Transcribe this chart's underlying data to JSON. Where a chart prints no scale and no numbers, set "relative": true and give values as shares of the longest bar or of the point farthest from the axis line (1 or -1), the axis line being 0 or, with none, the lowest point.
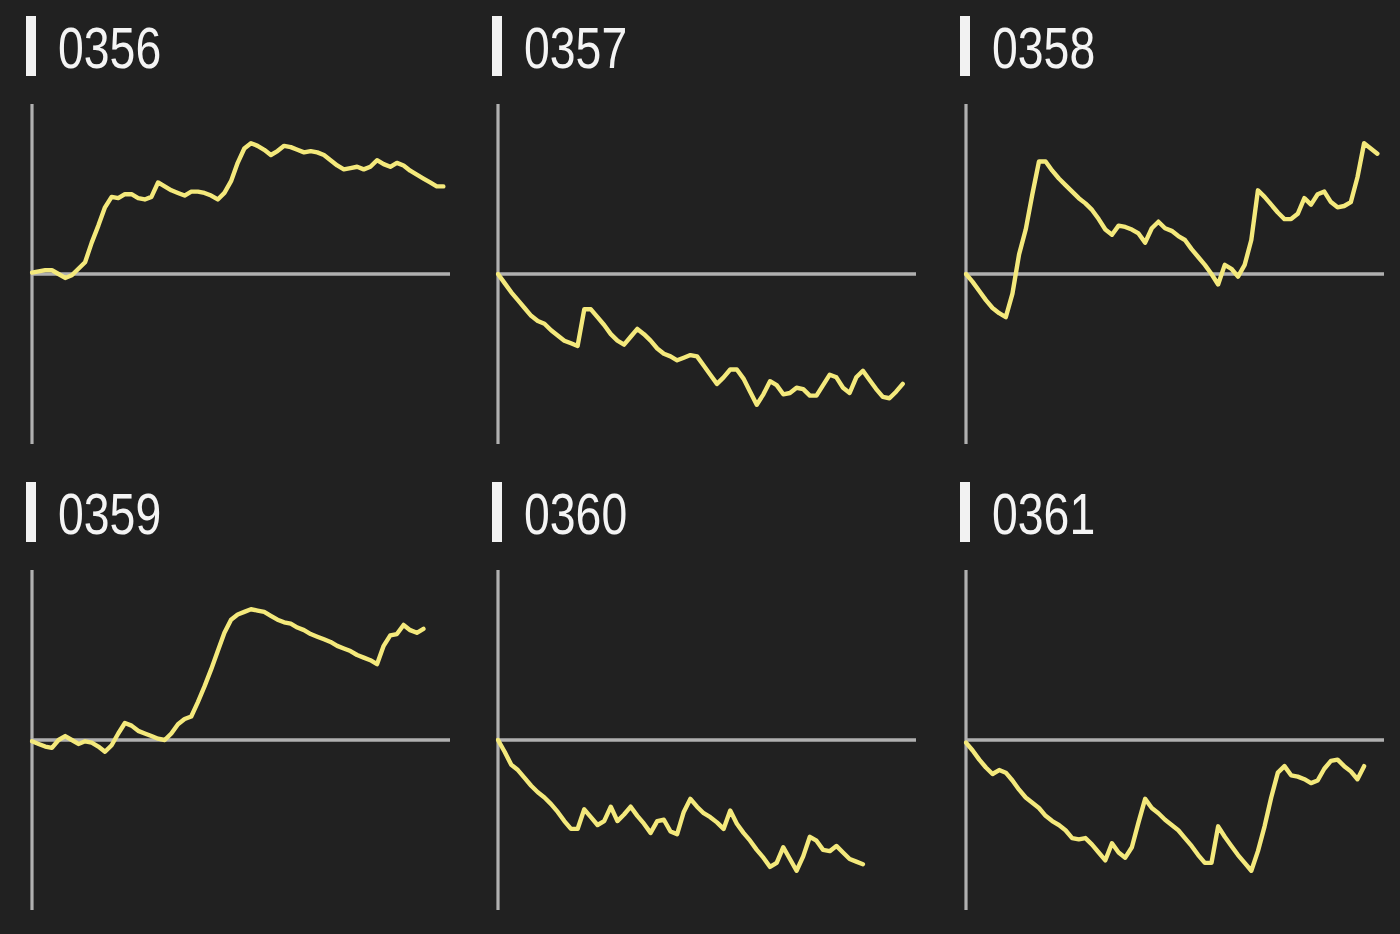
{
  "chart_data": [
    {
      "type": "line",
      "title": "0356",
      "relative": true,
      "tick_labels": false,
      "color": "#f4e97c",
      "categories": [
        null,
        null,
        null,
        null,
        null,
        null,
        null,
        null,
        null,
        null,
        null,
        null,
        null,
        null,
        null,
        null,
        null,
        null,
        null,
        null,
        null,
        null,
        null,
        null,
        null,
        null,
        null,
        null,
        null,
        null,
        null,
        null,
        null,
        null,
        null,
        null,
        null,
        null,
        null,
        null,
        null,
        null,
        null,
        null,
        null,
        null,
        null,
        null,
        null,
        null,
        null,
        null,
        null,
        null,
        null,
        null,
        null,
        null,
        null,
        null,
        null,
        null,
        null,
        null
      ],
      "values": [
        0.01,
        0.02,
        0.03,
        0.03,
        0,
        -0.03,
        -0.01,
        0.04,
        0.09,
        0.24,
        0.37,
        0.51,
        0.59,
        0.58,
        0.61,
        0.61,
        0.58,
        0.57,
        0.59,
        0.7,
        0.67,
        0.64,
        0.62,
        0.6,
        0.63,
        0.63,
        0.62,
        0.6,
        0.57,
        0.62,
        0.71,
        0.85,
        0.96,
        1,
        0.98,
        0.95,
        0.91,
        0.94,
        0.98,
        0.97,
        0.95,
        0.93,
        0.94,
        0.93,
        0.91,
        0.87,
        0.83,
        0.8,
        0.81,
        0.82,
        0.8,
        0.82,
        0.87,
        0.84,
        0.82,
        0.85,
        0.83,
        0.79,
        0.76,
        0.73,
        0.7,
        0.67,
        0.67,
        null
      ]
    },
    {
      "type": "line",
      "title": "0357",
      "relative": true,
      "tick_labels": false,
      "color": "#f4e97c",
      "categories": [
        null,
        null,
        null,
        null,
        null,
        null,
        null,
        null,
        null,
        null,
        null,
        null,
        null,
        null,
        null,
        null,
        null,
        null,
        null,
        null,
        null,
        null,
        null,
        null,
        null,
        null,
        null,
        null,
        null,
        null,
        null,
        null,
        null,
        null,
        null,
        null,
        null,
        null,
        null,
        null,
        null,
        null,
        null,
        null,
        null,
        null,
        null,
        null,
        null,
        null,
        null,
        null,
        null,
        null,
        null,
        null,
        null,
        null,
        null,
        null,
        null,
        null,
        null,
        null
      ],
      "values": [
        0,
        -0.07,
        -0.14,
        -0.2,
        -0.26,
        -0.32,
        -0.36,
        -0.38,
        -0.43,
        -0.47,
        -0.51,
        -0.53,
        -0.55,
        -0.27,
        -0.27,
        -0.33,
        -0.39,
        -0.46,
        -0.51,
        -0.54,
        -0.48,
        -0.42,
        -0.46,
        -0.51,
        -0.57,
        -0.61,
        -0.63,
        -0.66,
        -0.64,
        -0.62,
        -0.63,
        -0.7,
        -0.77,
        -0.84,
        -0.79,
        -0.73,
        -0.73,
        -0.8,
        -0.9,
        -1,
        -0.92,
        -0.82,
        -0.85,
        -0.92,
        -0.91,
        -0.87,
        -0.88,
        -0.93,
        -0.93,
        -0.85,
        -0.77,
        -0.79,
        -0.87,
        -0.91,
        -0.79,
        -0.74,
        -0.81,
        -0.88,
        -0.94,
        -0.95,
        -0.9,
        -0.84,
        null,
        null
      ]
    },
    {
      "type": "line",
      "title": "0358",
      "relative": true,
      "tick_labels": false,
      "color": "#f4e97c",
      "categories": [
        null,
        null,
        null,
        null,
        null,
        null,
        null,
        null,
        null,
        null,
        null,
        null,
        null,
        null,
        null,
        null,
        null,
        null,
        null,
        null,
        null,
        null,
        null,
        null,
        null,
        null,
        null,
        null,
        null,
        null,
        null,
        null,
        null,
        null,
        null,
        null,
        null,
        null,
        null,
        null,
        null,
        null,
        null,
        null,
        null,
        null,
        null,
        null,
        null,
        null,
        null,
        null,
        null,
        null,
        null,
        null,
        null,
        null,
        null,
        null,
        null,
        null,
        null,
        null
      ],
      "values": [
        0,
        -0.06,
        -0.13,
        -0.2,
        -0.26,
        -0.3,
        -0.33,
        -0.15,
        0.15,
        0.34,
        0.61,
        0.86,
        0.86,
        0.79,
        0.73,
        0.68,
        0.63,
        0.58,
        0.54,
        0.49,
        0.42,
        0.34,
        0.3,
        0.37,
        0.36,
        0.34,
        0.31,
        0.24,
        0.35,
        0.4,
        0.35,
        0.33,
        0.29,
        0.26,
        0.19,
        0.13,
        0.07,
        0,
        -0.08,
        0.07,
        0.04,
        -0.02,
        0.07,
        0.26,
        0.64,
        0.59,
        0.53,
        0.47,
        0.42,
        0.42,
        0.46,
        0.58,
        0.53,
        0.61,
        0.63,
        0.55,
        0.51,
        0.52,
        0.55,
        0.74,
        1,
        0.96,
        0.92,
        null
      ]
    },
    {
      "type": "line",
      "title": "0359",
      "relative": true,
      "tick_labels": false,
      "color": "#f4e97c",
      "categories": [
        null,
        null,
        null,
        null,
        null,
        null,
        null,
        null,
        null,
        null,
        null,
        null,
        null,
        null,
        null,
        null,
        null,
        null,
        null,
        null,
        null,
        null,
        null,
        null,
        null,
        null,
        null,
        null,
        null,
        null,
        null,
        null,
        null,
        null,
        null,
        null,
        null,
        null,
        null,
        null,
        null,
        null,
        null,
        null,
        null,
        null,
        null,
        null,
        null,
        null,
        null,
        null,
        null,
        null,
        null,
        null,
        null,
        null,
        null,
        null,
        null,
        null,
        null,
        null
      ],
      "values": [
        -0.01,
        -0.03,
        -0.05,
        -0.06,
        0,
        0.03,
        0,
        -0.03,
        -0.01,
        -0.02,
        -0.05,
        -0.09,
        -0.04,
        0.05,
        0.13,
        0.11,
        0.07,
        0.05,
        0.03,
        0.01,
        0,
        0.05,
        0.12,
        0.16,
        0.18,
        0.29,
        0.41,
        0.54,
        0.68,
        0.82,
        0.92,
        0.96,
        0.98,
        1,
        0.99,
        0.98,
        0.95,
        0.92,
        0.9,
        0.89,
        0.86,
        0.84,
        0.81,
        0.79,
        0.77,
        0.75,
        0.72,
        0.7,
        0.68,
        0.65,
        0.63,
        0.61,
        0.58,
        0.72,
        0.8,
        0.81,
        0.88,
        0.84,
        0.82,
        0.85,
        null,
        null,
        null,
        null
      ]
    },
    {
      "type": "line",
      "title": "0360",
      "relative": true,
      "tick_labels": false,
      "color": "#f4e97c",
      "categories": [
        null,
        null,
        null,
        null,
        null,
        null,
        null,
        null,
        null,
        null,
        null,
        null,
        null,
        null,
        null,
        null,
        null,
        null,
        null,
        null,
        null,
        null,
        null,
        null,
        null,
        null,
        null,
        null,
        null,
        null,
        null,
        null,
        null,
        null,
        null,
        null,
        null,
        null,
        null,
        null,
        null,
        null,
        null,
        null,
        null,
        null,
        null,
        null,
        null,
        null,
        null,
        null,
        null,
        null,
        null,
        null,
        null,
        null,
        null,
        null,
        null,
        null,
        null,
        null
      ],
      "values": [
        0,
        -0.09,
        -0.19,
        -0.23,
        -0.29,
        -0.35,
        -0.4,
        -0.44,
        -0.49,
        -0.55,
        -0.62,
        -0.68,
        -0.68,
        -0.53,
        -0.59,
        -0.65,
        -0.62,
        -0.51,
        -0.62,
        -0.57,
        -0.51,
        -0.58,
        -0.64,
        -0.71,
        -0.62,
        -0.61,
        -0.7,
        -0.72,
        -0.55,
        -0.45,
        -0.51,
        -0.56,
        -0.59,
        -0.63,
        -0.68,
        -0.54,
        -0.64,
        -0.71,
        -0.77,
        -0.84,
        -0.9,
        -0.97,
        -0.94,
        -0.82,
        -0.91,
        -1,
        -0.89,
        -0.74,
        -0.77,
        -0.84,
        -0.85,
        -0.81,
        -0.86,
        -0.91,
        -0.93,
        -0.95,
        null,
        null,
        null,
        null,
        null,
        null,
        null,
        null
      ]
    },
    {
      "type": "line",
      "title": "0361",
      "relative": true,
      "tick_labels": false,
      "color": "#f4e97c",
      "categories": [
        null,
        null,
        null,
        null,
        null,
        null,
        null,
        null,
        null,
        null,
        null,
        null,
        null,
        null,
        null,
        null,
        null,
        null,
        null,
        null,
        null,
        null,
        null,
        null,
        null,
        null,
        null,
        null,
        null,
        null,
        null,
        null,
        null,
        null,
        null,
        null,
        null,
        null,
        null,
        null,
        null,
        null,
        null,
        null,
        null,
        null,
        null,
        null,
        null,
        null,
        null,
        null,
        null,
        null,
        null,
        null,
        null,
        null,
        null,
        null,
        null,
        null,
        null,
        null
      ],
      "values": [
        -0.02,
        -0.08,
        -0.15,
        -0.21,
        -0.26,
        -0.23,
        -0.25,
        -0.31,
        -0.38,
        -0.44,
        -0.48,
        -0.52,
        -0.58,
        -0.62,
        -0.65,
        -0.69,
        -0.75,
        -0.76,
        -0.75,
        -0.8,
        -0.86,
        -0.92,
        -0.79,
        -0.86,
        -0.9,
        -0.82,
        -0.63,
        -0.45,
        -0.52,
        -0.56,
        -0.61,
        -0.65,
        -0.69,
        -0.75,
        -0.81,
        -0.88,
        -0.94,
        -0.94,
        -0.66,
        -0.74,
        -0.81,
        -0.88,
        -0.94,
        -1,
        -0.85,
        -0.66,
        -0.44,
        -0.25,
        -0.2,
        -0.27,
        -0.28,
        -0.3,
        -0.33,
        -0.31,
        -0.22,
        -0.16,
        -0.15,
        -0.2,
        -0.24,
        -0.3,
        -0.2,
        null,
        null,
        null
      ]
    }
  ]
}
